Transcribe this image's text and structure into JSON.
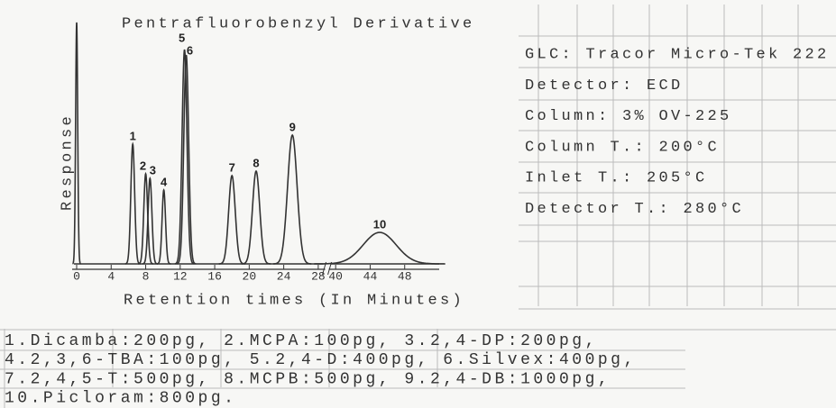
{
  "chart_data": {
    "type": "line",
    "title": "Pentrafluorobenzyl Derivative",
    "x_label": "Retention times (In Minutes)",
    "y_label": "Response",
    "color": "#333333",
    "labels": [
      null,
      "1",
      "2",
      "3",
      "4",
      "5",
      "6",
      "7",
      "8",
      "9",
      "10"
    ],
    "x": [
      0,
      6.5,
      8.0,
      8.5,
      10.1,
      12.5,
      12.7,
      18.0,
      20.8,
      25.0,
      45.1
    ],
    "values": [
      268,
      133,
      100,
      95,
      82,
      238,
      232,
      98,
      103,
      143,
      35
    ],
    "widths": [
      0.12,
      0.22,
      0.22,
      0.22,
      0.2,
      0.28,
      0.28,
      0.38,
      0.42,
      0.55,
      1.9
    ],
    "xlim": [
      0,
      52
    ],
    "axis_break": [
      28.8,
      39.2
    ],
    "xticks": [
      0,
      4,
      8,
      12,
      16,
      20,
      24,
      28,
      40,
      44,
      48
    ],
    "ylim": [
      0,
      270
    ]
  },
  "instrument": [
    "GLC: Tracor Micro-Tek 222",
    "Detector: ECD",
    "Column: 3% OV-225",
    "Column T.: 200°C",
    "Inlet T.: 205°C",
    "Detector T.: 280°C"
  ],
  "compounds": [
    "1.Dicamba:200pg, 2.MCPA:100pg, 3.2,4-DP:200pg,",
    "4.2,3,6-TBA:100pg, 5.2,4-D:400pg, 6.Silvex:400pg,",
    "7.2,4,5-T:500pg, 8.MCPB:500pg, 9.2,4-DB:1000pg,",
    "10.Picloram:800pg."
  ]
}
